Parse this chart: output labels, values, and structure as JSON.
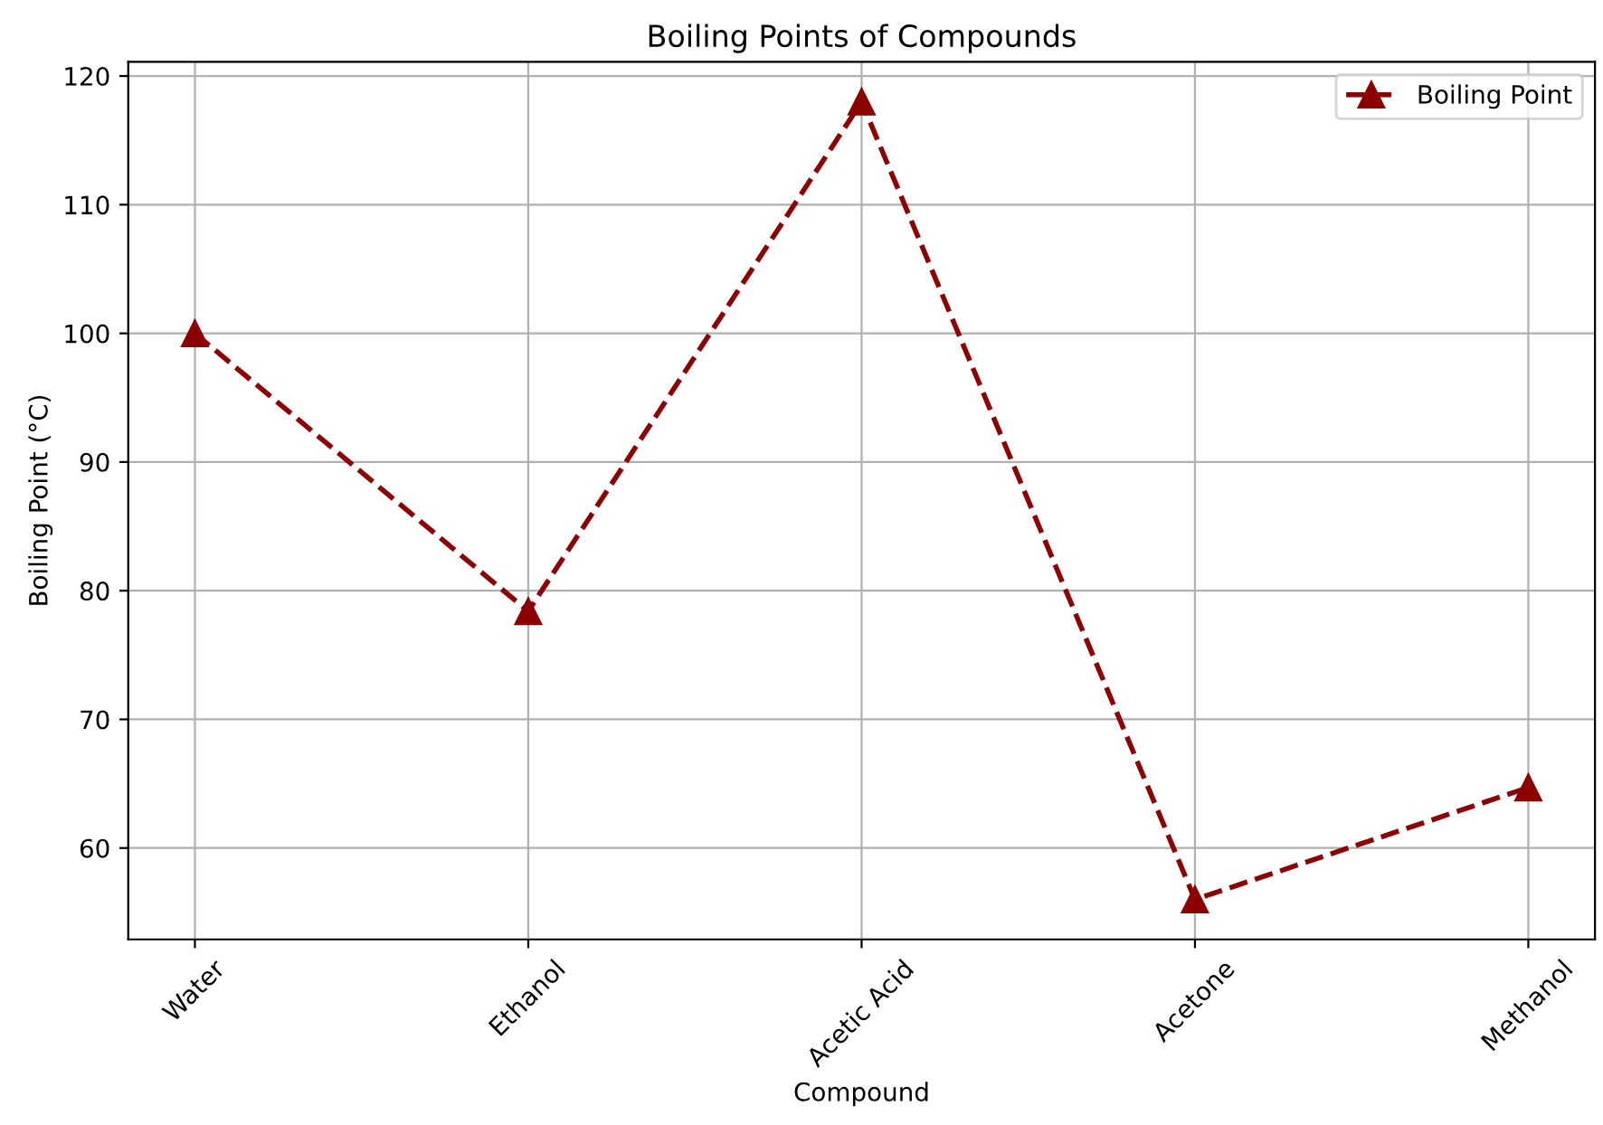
{
  "chart_data": {
    "type": "line",
    "title": "Boiling Points of Compounds",
    "xlabel": "Compound",
    "ylabel": "Boiling Point (°C)",
    "categories": [
      "Water",
      "Ethanol",
      "Acetic Acid",
      "Acetone",
      "Methanol"
    ],
    "series": [
      {
        "name": "Boiling Point",
        "color": "#8b0000",
        "values": [
          100,
          78.4,
          118,
          56,
          64.7
        ]
      }
    ],
    "ylim": [
      52.9,
      121.1
    ],
    "yticks": [
      60,
      70,
      80,
      90,
      100,
      110,
      120
    ],
    "grid": true,
    "legend": "top right",
    "marker": "triangle",
    "line_style": "dashed"
  }
}
